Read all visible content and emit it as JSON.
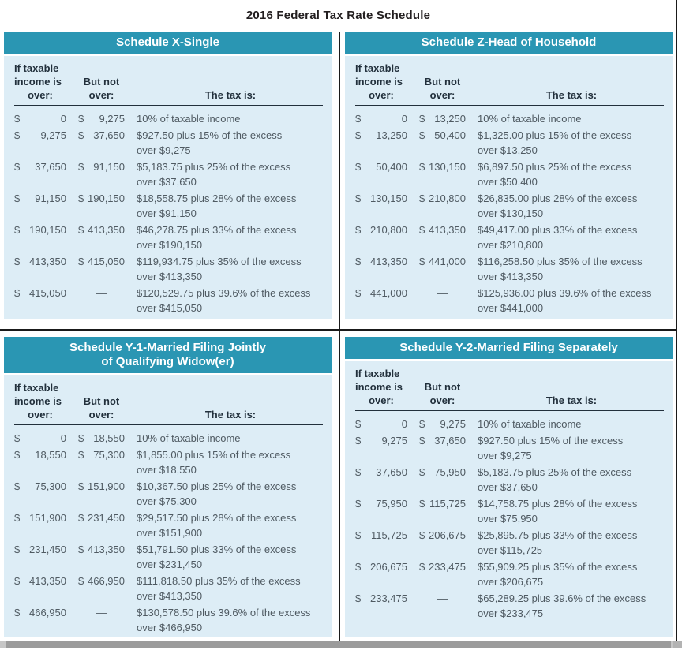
{
  "page_title": "2016 Federal Tax Rate Schedule",
  "labels": {
    "dollar": "$",
    "empty": ""
  },
  "column_headers": {
    "col1_line1": "If taxable",
    "col1_line2": "income is",
    "col1_line3": "over:",
    "col2_line1": "But not",
    "col2_line2": "over:",
    "col3": "The tax is:"
  },
  "colors": {
    "header_teal": "#2a96b3",
    "body_light_blue": "#ddedf6",
    "divider_black": "#1a1a1a",
    "header_text": "#ffffff",
    "body_text": "#4f5a62"
  },
  "schedules": [
    {
      "title_line1": "Schedule X-Single",
      "title_line2": "",
      "rows": [
        {
          "over": "0",
          "not_over": "9,275",
          "tax_line1": "10% of taxable income",
          "tax_line2": ""
        },
        {
          "over": "9,275",
          "not_over": "37,650",
          "tax_line1": "$927.50 plus 15% of the excess",
          "tax_line2": "over $9,275"
        },
        {
          "over": "37,650",
          "not_over": "91,150",
          "tax_line1": "$5,183.75 plus 25% of the excess",
          "tax_line2": "over $37,650"
        },
        {
          "over": "91,150",
          "not_over": "190,150",
          "tax_line1": "$18,558.75 plus 28% of the excess",
          "tax_line2": "over $91,150"
        },
        {
          "over": "190,150",
          "not_over": "413,350",
          "tax_line1": "$46,278.75 plus 33% of the excess",
          "tax_line2": "over $190,150"
        },
        {
          "over": "413,350",
          "not_over": "415,050",
          "tax_line1": "$119,934.75 plus 35% of the excess",
          "tax_line2": "over $413,350"
        },
        {
          "over": "415,050",
          "not_over": "—",
          "tax_line1": "$120,529.75 plus 39.6% of the excess",
          "tax_line2": "over $415,050"
        }
      ]
    },
    {
      "title_line1": "Schedule Z-Head of Household",
      "title_line2": "",
      "rows": [
        {
          "over": "0",
          "not_over": "13,250",
          "tax_line1": "10% of taxable income",
          "tax_line2": ""
        },
        {
          "over": "13,250",
          "not_over": "50,400",
          "tax_line1": "$1,325.00 plus 15% of the excess",
          "tax_line2": "over $13,250"
        },
        {
          "over": "50,400",
          "not_over": "130,150",
          "tax_line1": "$6,897.50 plus 25% of the excess",
          "tax_line2": "over $50,400"
        },
        {
          "over": "130,150",
          "not_over": "210,800",
          "tax_line1": "$26,835.00 plus 28% of the excess",
          "tax_line2": "over $130,150"
        },
        {
          "over": "210,800",
          "not_over": "413,350",
          "tax_line1": "$49,417.00 plus 33% of the excess",
          "tax_line2": "over $210,800"
        },
        {
          "over": "413,350",
          "not_over": "441,000",
          "tax_line1": "$116,258.50 plus 35% of the excess",
          "tax_line2": "over $413,350"
        },
        {
          "over": "441,000",
          "not_over": "—",
          "tax_line1": "$125,936.00 plus 39.6% of the excess",
          "tax_line2": "over $441,000"
        }
      ]
    },
    {
      "title_line1": "Schedule Y-1-Married Filing Jointly",
      "title_line2": "of Qualifying Widow(er)",
      "rows": [
        {
          "over": "0",
          "not_over": "18,550",
          "tax_line1": "10% of taxable income",
          "tax_line2": ""
        },
        {
          "over": "18,550",
          "not_over": "75,300",
          "tax_line1": "$1,855.00 plus 15% of the excess",
          "tax_line2": "over $18,550"
        },
        {
          "over": "75,300",
          "not_over": "151,900",
          "tax_line1": "$10,367.50 plus 25% of the excess",
          "tax_line2": "over $75,300"
        },
        {
          "over": "151,900",
          "not_over": "231,450",
          "tax_line1": "$29,517.50 plus 28% of the excess",
          "tax_line2": "over $151,900"
        },
        {
          "over": "231,450",
          "not_over": "413,350",
          "tax_line1": "$51,791.50 plus 33% of the excess",
          "tax_line2": "over $231,450"
        },
        {
          "over": "413,350",
          "not_over": "466,950",
          "tax_line1": "$111,818.50 plus 35% of the excess",
          "tax_line2": "over $413,350"
        },
        {
          "over": "466,950",
          "not_over": "—",
          "tax_line1": "$130,578.50 plus 39.6% of the excess",
          "tax_line2": "over $466,950"
        }
      ]
    },
    {
      "title_line1": "Schedule Y-2-Married Filing Separately",
      "title_line2": "",
      "rows": [
        {
          "over": "0",
          "not_over": "9,275",
          "tax_line1": "10% of taxable income",
          "tax_line2": ""
        },
        {
          "over": "9,275",
          "not_over": "37,650",
          "tax_line1": "$927.50 plus 15% of the excess",
          "tax_line2": "over $9,275"
        },
        {
          "over": "37,650",
          "not_over": "75,950",
          "tax_line1": "$5,183.75 plus 25% of the excess",
          "tax_line2": "over $37,650"
        },
        {
          "over": "75,950",
          "not_over": "115,725",
          "tax_line1": "$14,758.75 plus 28% of the excess",
          "tax_line2": "over $75,950"
        },
        {
          "over": "115,725",
          "not_over": "206,675",
          "tax_line1": "$25,895.75 plus 33% of the excess",
          "tax_line2": "over $115,725"
        },
        {
          "over": "206,675",
          "not_over": "233,475",
          "tax_line1": "$55,909.25 plus 35% of the excess",
          "tax_line2": "over $206,675"
        },
        {
          "over": "233,475",
          "not_over": "—",
          "tax_line1": "$65,289.25 plus 39.6% of the excess",
          "tax_line2": "over $233,475"
        }
      ]
    }
  ]
}
